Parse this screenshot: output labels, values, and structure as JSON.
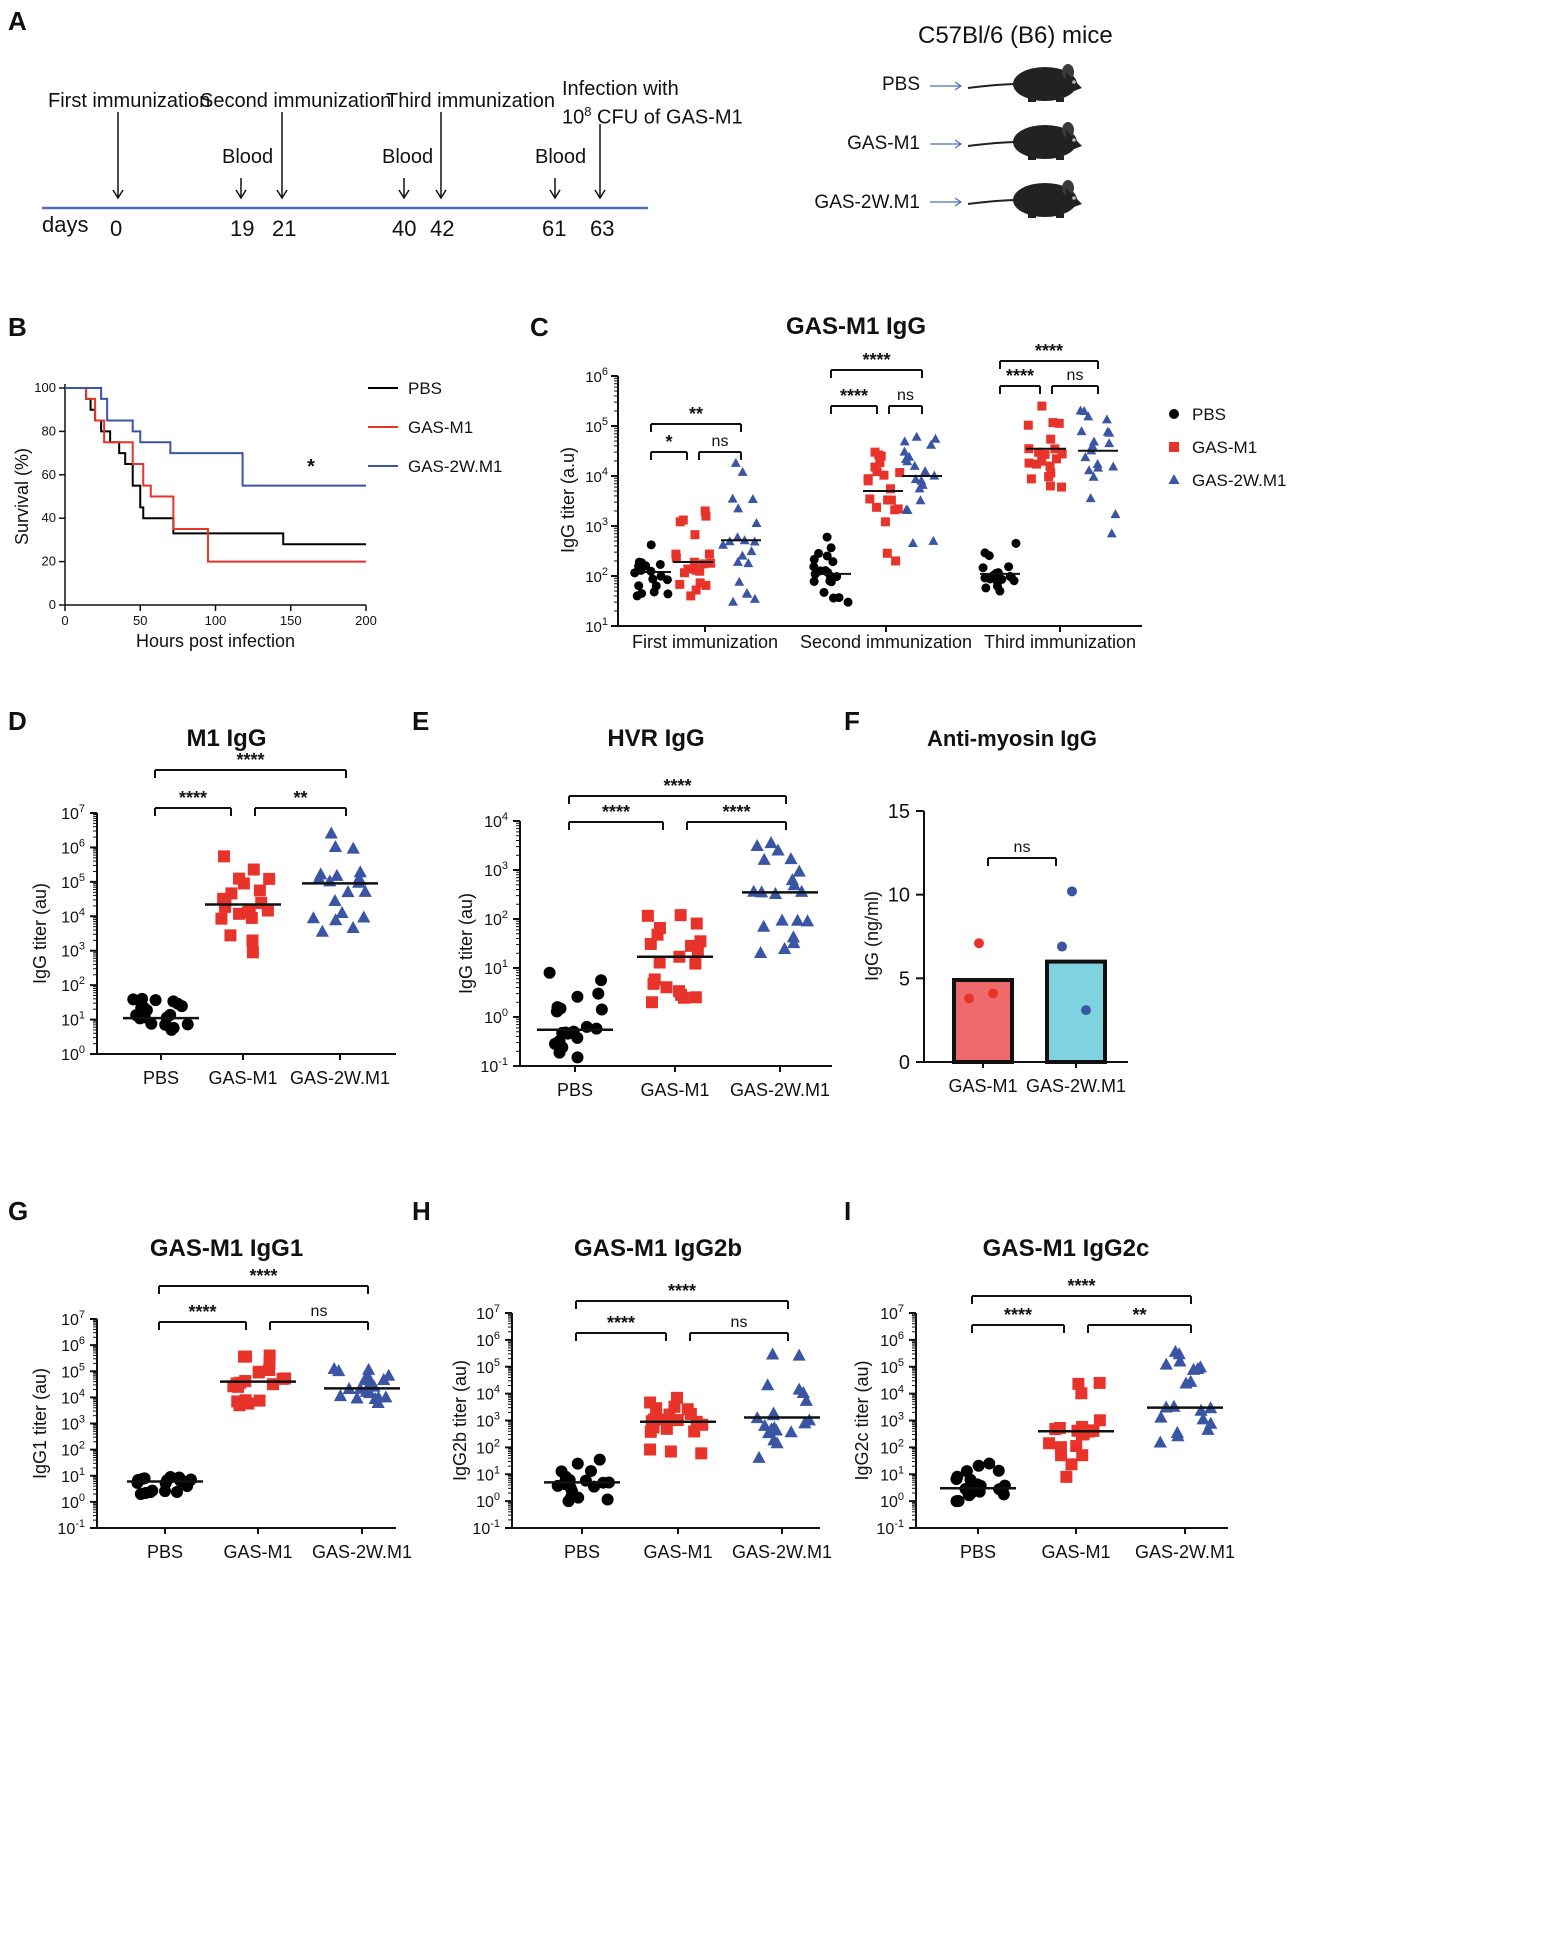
{
  "colors": {
    "pbs": "#000000",
    "gas_m1": "#e8332a",
    "gas_2w": "#3a55a4",
    "timeline": "#4a6fc0",
    "bar_m1": "#ef6b6b",
    "bar_2w": "#7fd3e0"
  },
  "panels": {
    "A": "A",
    "B": "B",
    "C": "C",
    "D": "D",
    "E": "E",
    "F": "F",
    "G": "G",
    "H": "H",
    "I": "I"
  },
  "timeline": {
    "events": [
      "First immunization",
      "Second immunization",
      "Third immunization"
    ],
    "infection_line1": "Infection with",
    "infection_line2_pre": "10",
    "infection_line2_sup": "8",
    "infection_line2_post": " CFU of  GAS-M1",
    "blood": "Blood",
    "days_label": "days",
    "days": [
      "0",
      "19",
      "21",
      "40",
      "42",
      "61",
      "63"
    ]
  },
  "mice": {
    "title": "C57Bl/6 (B6) mice",
    "groups": [
      "PBS",
      "GAS-M1",
      "GAS-2W.M1"
    ]
  },
  "chart_data": [
    {
      "id": "B",
      "type": "line",
      "title": "",
      "xlabel": "Hours post infection",
      "ylabel": "Survival (%)",
      "xlim": [
        0,
        200
      ],
      "ylim": [
        0,
        100
      ],
      "xticks": [
        "0",
        "50",
        "100",
        "150",
        "200"
      ],
      "yticks": [
        "0",
        "20",
        "40",
        "60",
        "80",
        "100"
      ],
      "series": [
        {
          "name": "PBS",
          "points": [
            [
              0,
              100
            ],
            [
              14,
              100
            ],
            [
              14,
              95
            ],
            [
              17,
              95
            ],
            [
              17,
              90
            ],
            [
              20,
              90
            ],
            [
              20,
              85
            ],
            [
              24,
              85
            ],
            [
              24,
              80
            ],
            [
              30,
              80
            ],
            [
              30,
              75
            ],
            [
              36,
              75
            ],
            [
              36,
              70
            ],
            [
              40,
              70
            ],
            [
              40,
              65
            ],
            [
              45,
              65
            ],
            [
              45,
              55
            ],
            [
              50,
              55
            ],
            [
              50,
              45
            ],
            [
              52,
              45
            ],
            [
              52,
              40
            ],
            [
              72,
              40
            ],
            [
              72,
              33
            ],
            [
              145,
              33
            ],
            [
              145,
              28
            ],
            [
              200,
              28
            ]
          ]
        },
        {
          "name": "GAS-M1",
          "points": [
            [
              0,
              100
            ],
            [
              14,
              100
            ],
            [
              14,
              95
            ],
            [
              20,
              95
            ],
            [
              20,
              85
            ],
            [
              26,
              85
            ],
            [
              26,
              75
            ],
            [
              45,
              75
            ],
            [
              45,
              65
            ],
            [
              52,
              65
            ],
            [
              52,
              55
            ],
            [
              57,
              55
            ],
            [
              57,
              50
            ],
            [
              72,
              50
            ],
            [
              72,
              35
            ],
            [
              95,
              35
            ],
            [
              95,
              20
            ],
            [
              200,
              20
            ]
          ]
        },
        {
          "name": "GAS-2W.M1",
          "points": [
            [
              0,
              100
            ],
            [
              24,
              100
            ],
            [
              24,
              95
            ],
            [
              28,
              95
            ],
            [
              28,
              85
            ],
            [
              45,
              85
            ],
            [
              45,
              80
            ],
            [
              50,
              80
            ],
            [
              50,
              75
            ],
            [
              70,
              75
            ],
            [
              70,
              70
            ],
            [
              118,
              70
            ],
            [
              118,
              55
            ],
            [
              200,
              55
            ]
          ]
        }
      ],
      "annotations": [
        "*"
      ]
    },
    {
      "id": "C",
      "type": "scatter",
      "title": "GAS-M1 IgG",
      "ylabel": "IgG titer (a.u)",
      "yscale": "log",
      "ylim_exp": [
        1,
        6
      ],
      "ytick_exps": [
        "1",
        "2",
        "3",
        "4",
        "5",
        "6"
      ],
      "groups": [
        "First immunization",
        "Second immunization",
        "Third immunization"
      ],
      "legend": [
        "PBS",
        "GAS-M1",
        "GAS-2W.M1"
      ],
      "series": [
        {
          "name": "PBS",
          "medians": [
            120,
            110,
            110
          ]
        },
        {
          "name": "GAS-M1",
          "medians": [
            190,
            5000,
            35000
          ]
        },
        {
          "name": "GAS-2W.M1",
          "medians": [
            520,
            10000,
            32000
          ]
        }
      ],
      "significance": [
        {
          "group": 0,
          "pairs": [
            [
              "PBS",
              "GAS-M1",
              "*"
            ],
            [
              "GAS-M1",
              "GAS-2W.M1",
              "ns"
            ],
            [
              "PBS",
              "GAS-2W.M1",
              "**"
            ]
          ]
        },
        {
          "group": 1,
          "pairs": [
            [
              "PBS",
              "GAS-M1",
              "****"
            ],
            [
              "GAS-M1",
              "GAS-2W.M1",
              "ns"
            ],
            [
              "PBS",
              "GAS-2W.M1",
              "****"
            ]
          ]
        },
        {
          "group": 2,
          "pairs": [
            [
              "PBS",
              "GAS-M1",
              "****"
            ],
            [
              "GAS-M1",
              "GAS-2W.M1",
              "ns"
            ],
            [
              "PBS",
              "GAS-2W.M1",
              "****"
            ]
          ]
        }
      ]
    },
    {
      "id": "D",
      "type": "scatter",
      "title": "M1 IgG",
      "ylabel": "IgG titer (au)",
      "yscale": "log",
      "ylim_exp": [
        0,
        7
      ],
      "ytick_exps": [
        "0",
        "1",
        "2",
        "3",
        "4",
        "5",
        "6",
        "7"
      ],
      "categories": [
        "PBS",
        "GAS-M1",
        "GAS-2W.M1"
      ],
      "medians": [
        11,
        22000,
        90000
      ],
      "ranges": [
        [
          5,
          40
        ],
        [
          900,
          550000
        ],
        [
          3500,
          2500000
        ]
      ],
      "significance": [
        [
          "PBS",
          "GAS-M1",
          "****"
        ],
        [
          "GAS-M1",
          "GAS-2W.M1",
          "**"
        ],
        [
          "PBS",
          "GAS-2W.M1",
          "****"
        ]
      ]
    },
    {
      "id": "E",
      "type": "scatter",
      "title": "HVR IgG",
      "ylabel": "IgG titer (au)",
      "yscale": "log",
      "ylim_exp": [
        -1,
        4
      ],
      "ytick_exps": [
        "-1",
        "0",
        "1",
        "2",
        "3",
        "4"
      ],
      "categories": [
        "PBS",
        "GAS-M1",
        "GAS-2W.M1"
      ],
      "medians": [
        0.55,
        17,
        350
      ],
      "ranges": [
        [
          0.15,
          8
        ],
        [
          2,
          120
        ],
        [
          20,
          3500
        ]
      ],
      "significance": [
        [
          "PBS",
          "GAS-M1",
          "****"
        ],
        [
          "GAS-M1",
          "GAS-2W.M1",
          "****"
        ],
        [
          "PBS",
          "GAS-2W.M1",
          "****"
        ]
      ]
    },
    {
      "id": "F",
      "type": "bar",
      "title": "Anti-myosin IgG",
      "ylabel": "IgG (ng/ml)",
      "ylim": [
        0,
        15
      ],
      "yticks": [
        "0",
        "5",
        "10",
        "15"
      ],
      "categories": [
        "GAS-M1",
        "GAS-2W.M1"
      ],
      "values": [
        4.9,
        6.0
      ],
      "points": [
        [
          7.1,
          3.8,
          4.1
        ],
        [
          10.2,
          6.9,
          3.1
        ]
      ],
      "significance": [
        [
          "GAS-M1",
          "GAS-2W.M1",
          "ns"
        ]
      ]
    },
    {
      "id": "G",
      "type": "scatter",
      "title": "GAS-M1 IgG1",
      "ylabel": "IgG1 titer (au)",
      "yscale": "log",
      "ylim_exp": [
        -1,
        7
      ],
      "ytick_exps": [
        "-1",
        "0",
        "1",
        "2",
        "3",
        "4",
        "5",
        "6",
        "7"
      ],
      "categories": [
        "PBS",
        "GAS-M1",
        "GAS-2W.M1"
      ],
      "medians": [
        6,
        40000,
        22000
      ],
      "ranges": [
        [
          2,
          9
        ],
        [
          5000,
          400000
        ],
        [
          6000,
          120000
        ]
      ],
      "significance": [
        [
          "PBS",
          "GAS-M1",
          "****"
        ],
        [
          "GAS-M1",
          "GAS-2W.M1",
          "ns"
        ],
        [
          "PBS",
          "GAS-2W.M1",
          "****"
        ]
      ]
    },
    {
      "id": "H",
      "type": "scatter",
      "title": "GAS-M1 IgG2b",
      "ylabel": "IgG2b titer (au)",
      "yscale": "log",
      "ylim_exp": [
        -1,
        7
      ],
      "ytick_exps": [
        "-1",
        "0",
        "1",
        "2",
        "3",
        "4",
        "5",
        "6",
        "7"
      ],
      "categories": [
        "PBS",
        "GAS-M1",
        "GAS-2W.M1"
      ],
      "medians": [
        5,
        900,
        1300
      ],
      "ranges": [
        [
          1,
          35
        ],
        [
          60,
          7000
        ],
        [
          40,
          280000
        ]
      ],
      "significance": [
        [
          "PBS",
          "GAS-M1",
          "****"
        ],
        [
          "GAS-M1",
          "GAS-2W.M1",
          "ns"
        ],
        [
          "PBS",
          "GAS-2W.M1",
          "****"
        ]
      ]
    },
    {
      "id": "I",
      "type": "scatter",
      "title": "GAS-M1 IgG2c",
      "ylabel": "IgG2c titer (au)",
      "yscale": "log",
      "ylim_exp": [
        -1,
        7
      ],
      "ytick_exps": [
        "-1",
        "0",
        "1",
        "2",
        "3",
        "4",
        "5",
        "6",
        "7"
      ],
      "categories": [
        "PBS",
        "GAS-M1",
        "GAS-2W.M1"
      ],
      "medians": [
        3,
        400,
        3000
      ],
      "ranges": [
        [
          1,
          25
        ],
        [
          8,
          25000
        ],
        [
          150,
          350000
        ]
      ],
      "significance": [
        [
          "PBS",
          "GAS-M1",
          "****"
        ],
        [
          "GAS-M1",
          "GAS-2W.M1",
          "**"
        ],
        [
          "PBS",
          "GAS-2W.M1",
          "****"
        ]
      ]
    }
  ]
}
